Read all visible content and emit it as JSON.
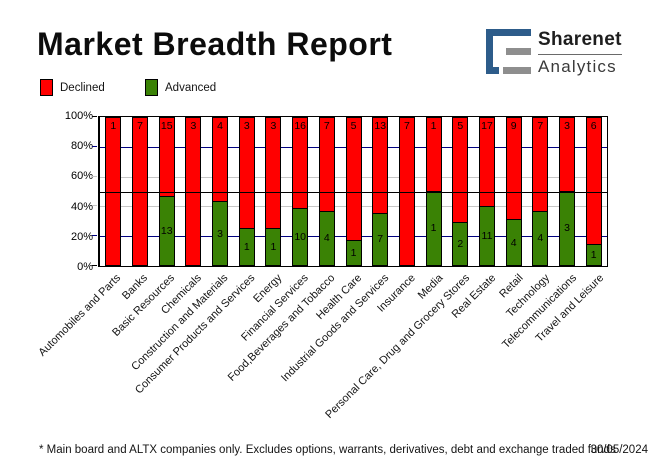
{
  "header": {
    "title": "Market Breadth Report",
    "logo": {
      "brand": "Sharenet",
      "sub": "Analytics",
      "blue": "#2D5C8A",
      "gray": "#8E8E8E"
    }
  },
  "legend": [
    {
      "label": "Declined",
      "color": "#FF0000"
    },
    {
      "label": "Advanced",
      "color": "#3A8205"
    }
  ],
  "chart_data": {
    "type": "bar",
    "stacked": true,
    "normalized_to_percent": true,
    "title": "Market Breadth Report",
    "categories": [
      "Automobiles and Parts",
      "Banks",
      "Basic Resources",
      "Chemicals",
      "Construction and Materials",
      "Consumer Products and Services",
      "Energy",
      "Financial Services",
      "Food,Beverages and Tobacco",
      "Health Care",
      "Industrial Goods and Services",
      "Insurance",
      "Media",
      "Personal Care, Drug and Grocery Stores",
      "Real Estate",
      "Retail",
      "Technology",
      "Telecommunications",
      "Travel and Leisure"
    ],
    "series": [
      {
        "name": "Declined",
        "color": "#FF0000",
        "values": [
          1,
          7,
          15,
          3,
          4,
          3,
          3,
          16,
          7,
          5,
          13,
          7,
          1,
          5,
          17,
          9,
          7,
          3,
          6
        ]
      },
      {
        "name": "Advanced",
        "color": "#3A8205",
        "values": [
          0,
          0,
          13,
          0,
          3,
          1,
          1,
          10,
          4,
          1,
          7,
          0,
          1,
          2,
          11,
          4,
          4,
          3,
          1
        ]
      }
    ],
    "ylim": [
      0,
      100
    ],
    "y_ticks": [
      {
        "label": "100%",
        "pct": 100
      },
      {
        "label": "80%",
        "pct": 80
      },
      {
        "label": "60%",
        "pct": 60
      },
      {
        "label": "40%",
        "pct": 40
      },
      {
        "label": "20%",
        "pct": 20
      },
      {
        "label": "0%",
        "pct": 0
      }
    ],
    "gridlines": [
      {
        "pct": 80,
        "color": "#000080"
      },
      {
        "pct": 60,
        "color": "#C6C6C6"
      },
      {
        "pct": 50,
        "color": "#000000",
        "front": true
      },
      {
        "pct": 40,
        "color": "#C6C6C6"
      },
      {
        "pct": 20,
        "color": "#000080"
      }
    ],
    "axis_ticks": [
      {
        "pct": 100,
        "color": "#000000"
      },
      {
        "pct": 80,
        "color": "#000080"
      },
      {
        "pct": 60,
        "color": "#C6C6C6"
      },
      {
        "pct": 40,
        "color": "#C6C6C6"
      },
      {
        "pct": 20,
        "color": "#000080"
      },
      {
        "pct": 0,
        "color": "#000000"
      }
    ],
    "legend_position": "top-left",
    "grid": true
  },
  "footer": {
    "note": "* Main board and ALTX companies only. Excludes options, warrants, derivatives, debt and exchange traded funds",
    "date": "30/05/2024"
  }
}
